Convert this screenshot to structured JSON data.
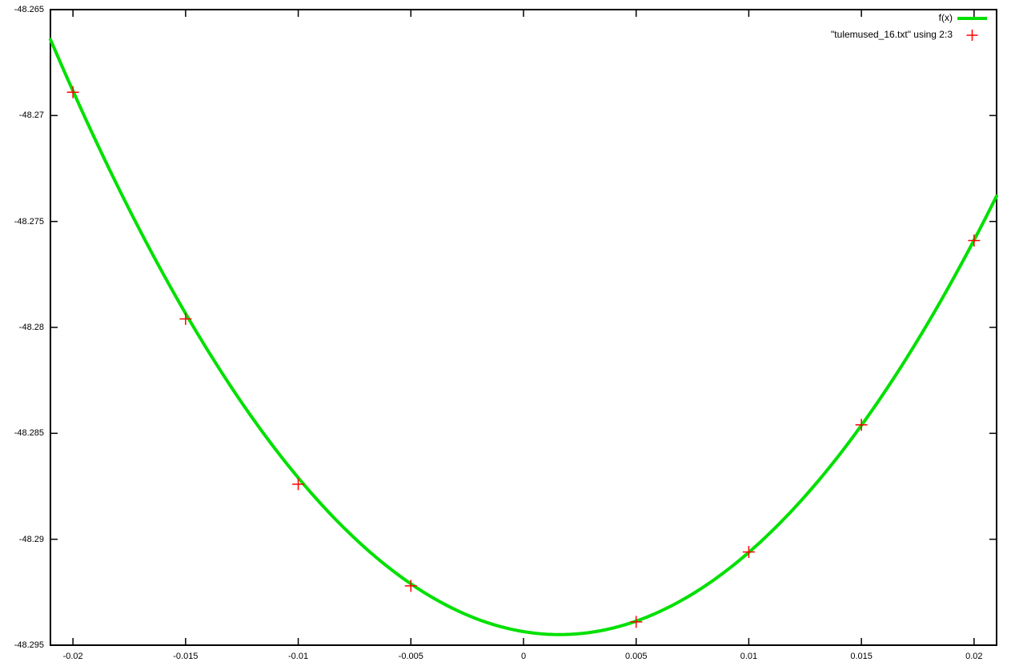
{
  "chart_data": {
    "type": "line",
    "title": "",
    "xlabel": "",
    "ylabel": "",
    "grid": false,
    "background_color": "#ffffff",
    "axis_color": "#000000",
    "text_color": "#000000",
    "xlim": [
      -0.021,
      0.021
    ],
    "ylim": [
      -48.295,
      -48.265
    ],
    "x_ticks": {
      "values": [
        -0.02,
        -0.015,
        -0.01,
        -0.005,
        0,
        0.005,
        0.01,
        0.015,
        0.02
      ],
      "labels": [
        "-0.02",
        "-0.015",
        "-0.01",
        "-0.005",
        "0",
        "0.005",
        "0.01",
        "0.015",
        "0.02"
      ]
    },
    "y_ticks": {
      "values": [
        -48.295,
        -48.29,
        -48.285,
        -48.28,
        -48.275,
        -48.27,
        -48.265
      ],
      "labels": [
        "-48.295",
        "-48.29",
        "-48.285",
        "-48.28",
        "-48.275",
        "-48.27",
        "-48.265"
      ]
    },
    "legend": {
      "position": "top-right-inside",
      "entries": [
        "f(x)",
        "\"tulemused_16.txt\" using 2:3"
      ]
    },
    "series": [
      {
        "name": "f(x)",
        "type": "line",
        "color": "#00e000",
        "line_width": 4,
        "function": {
          "form": "a*(x-x0)^2+y0",
          "a": 55,
          "x0": 0.0016,
          "y0": -48.2945
        }
      },
      {
        "name": "\"tulemused_16.txt\" using 2:3",
        "type": "scatter",
        "marker": "plus",
        "color": "#ff0000",
        "points": [
          {
            "x": -0.02,
            "y": -48.2689
          },
          {
            "x": -0.015,
            "y": -48.2796
          },
          {
            "x": -0.01,
            "y": -48.2874
          },
          {
            "x": -0.005,
            "y": -48.2922
          },
          {
            "x": 0.005,
            "y": -48.2939
          },
          {
            "x": 0.01,
            "y": -48.2906
          },
          {
            "x": 0.015,
            "y": -48.2846
          },
          {
            "x": 0.02,
            "y": -48.2759
          }
        ]
      }
    ]
  }
}
